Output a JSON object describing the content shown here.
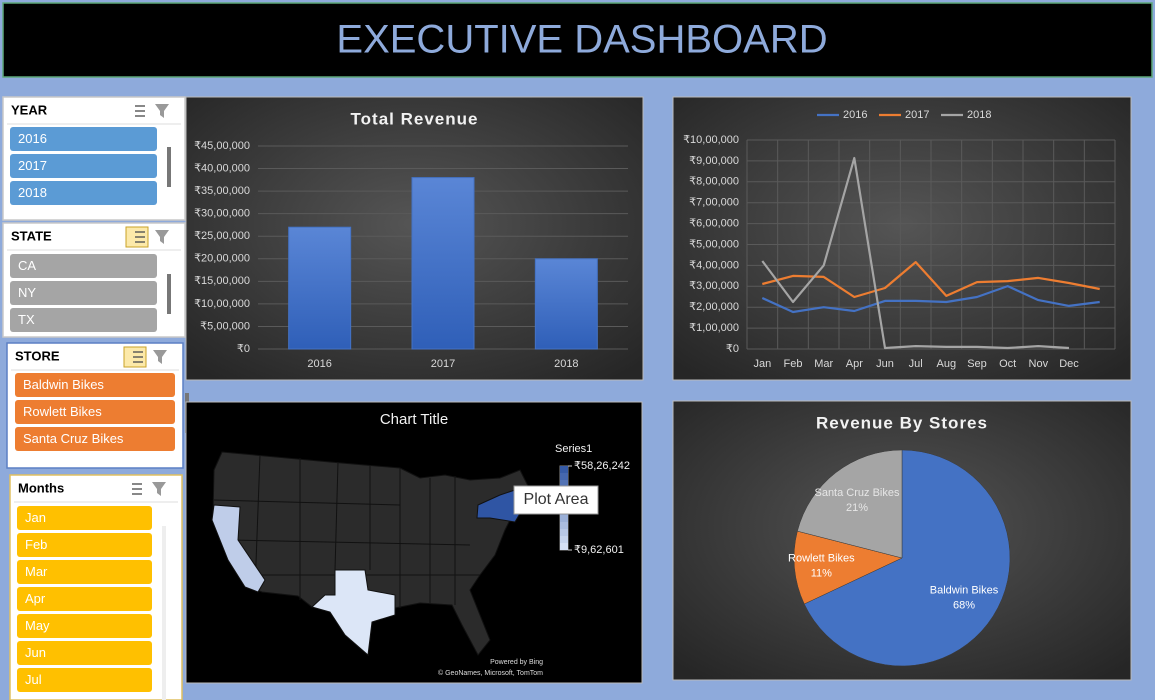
{
  "header": {
    "title": "EXECUTIVE DASHBOARD"
  },
  "slicers": [
    {
      "title": "YEAR",
      "items": [
        "2016",
        "2017",
        "2018"
      ],
      "color": "#5b9bd5"
    },
    {
      "title": "STATE",
      "items": [
        "CA",
        "NY",
        "TX"
      ],
      "color": "#a5a5a5"
    },
    {
      "title": "STORE",
      "items": [
        "Baldwin Bikes",
        "Rowlett Bikes",
        "Santa Cruz Bikes"
      ],
      "color": "#ed7d31"
    },
    {
      "title": "Months",
      "items": [
        "Jan",
        "Feb",
        "Mar",
        "Apr",
        "May",
        "Jun",
        "Jul"
      ],
      "color": "#ffc000"
    }
  ],
  "chart_data": [
    {
      "type": "bar",
      "title": "Total Revenue",
      "categories": [
        "2016",
        "2017",
        "2018"
      ],
      "values": [
        2700000,
        3800000,
        2000000
      ],
      "color": "#4472c4",
      "ylim": [
        0,
        4500000
      ],
      "yticks": [
        {
          "value": 0,
          "label": "₹0"
        },
        {
          "value": 500000,
          "label": "₹5,00,000"
        },
        {
          "value": 1000000,
          "label": "₹10,00,000"
        },
        {
          "value": 1500000,
          "label": "₹15,00,000"
        },
        {
          "value": 2000000,
          "label": "₹20,00,000"
        },
        {
          "value": 2500000,
          "label": "₹25,00,000"
        },
        {
          "value": 3000000,
          "label": "₹30,00,000"
        },
        {
          "value": 3500000,
          "label": "₹35,00,000"
        },
        {
          "value": 4000000,
          "label": "₹40,00,000"
        },
        {
          "value": 4500000,
          "label": "₹45,00,000"
        }
      ],
      "grid": true
    },
    {
      "type": "line",
      "categories": [
        "Jan",
        "Feb",
        "Mar",
        "Apr",
        "Jun",
        "Jul",
        "Aug",
        "Sep",
        "Oct",
        "Nov",
        "Dec",
        null
      ],
      "series": [
        {
          "name": "2016",
          "color": "#4472c4",
          "values": [
            244000,
            177000,
            200000,
            182000,
            230000,
            230000,
            225000,
            249000,
            301000,
            234000,
            206000,
            225000
          ]
        },
        {
          "name": "2017",
          "color": "#ed7d31",
          "values": [
            311000,
            350000,
            345000,
            249000,
            292000,
            416000,
            254000,
            320000,
            325000,
            340000,
            316000,
            287000
          ]
        },
        {
          "name": "2018",
          "color": "#a5a5a5",
          "values": [
            421000,
            225000,
            400000,
            914000,
            5000,
            14000,
            10000,
            10000,
            5000,
            14000,
            5000,
            null
          ]
        }
      ],
      "ylim": [
        0,
        1000000
      ],
      "yticks": [
        {
          "value": 0,
          "label": "₹0"
        },
        {
          "value": 100000,
          "label": "₹1,00,000"
        },
        {
          "value": 200000,
          "label": "₹2,00,000"
        },
        {
          "value": 300000,
          "label": "₹3,00,000"
        },
        {
          "value": 400000,
          "label": "₹4,00,000"
        },
        {
          "value": 500000,
          "label": "₹5,00,000"
        },
        {
          "value": 600000,
          "label": "₹6,00,000"
        },
        {
          "value": 700000,
          "label": "₹7,00,000"
        },
        {
          "value": 800000,
          "label": "₹8,00,000"
        },
        {
          "value": 900000,
          "label": "₹9,00,000"
        },
        {
          "value": 1000000,
          "label": "₹10,00,000"
        }
      ],
      "grid": true,
      "legend": "top"
    },
    {
      "type": "map",
      "title": "Chart Title",
      "legend_title": "Series1",
      "categories": [
        "CA",
        "NY",
        "TX"
      ],
      "values": [
        1790000,
        5826242,
        962601
      ],
      "colorticks": [
        {
          "value": 5826242,
          "label": "₹58,26,242"
        },
        {
          "value": 962601,
          "label": "₹9,62,601"
        }
      ],
      "colors": [
        "#dce6f7",
        "#2f55a4"
      ],
      "annotations": [
        "Plot Area",
        "Powered by Bing",
        "© GeoNames, Microsoft, TomTom"
      ]
    },
    {
      "type": "pie",
      "title": "Revenue By Stores",
      "categories": [
        "Baldwin Bikes",
        "Rowlett Bikes",
        "Santa Cruz Bikes"
      ],
      "values": [
        68,
        11,
        21
      ],
      "value_labels": [
        "68%",
        "11%",
        "21%"
      ],
      "colors": [
        "#4472c4",
        "#ed7d31",
        "#a5a5a5"
      ]
    }
  ]
}
